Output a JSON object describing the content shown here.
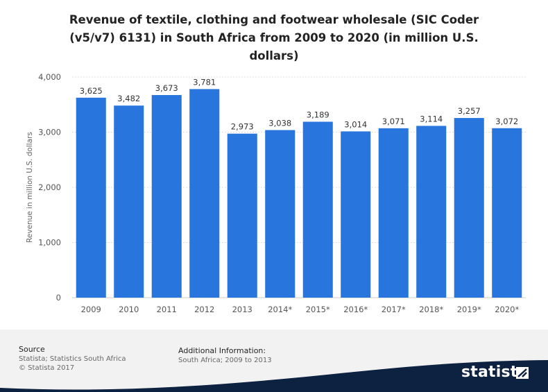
{
  "chart_data": {
    "type": "bar",
    "title": "Revenue of textile, clothing and footwear wholesale (SIC Coder (v5/v7) 6131) in South Africa from 2009 to 2020 (in million U.S. dollars)",
    "title_lines": [
      "Revenue of textile, clothing and footwear wholesale (SIC Coder",
      "(v5/v7) 6131) in South Africa from 2009 to 2020 (in million U.S.",
      "dollars)"
    ],
    "categories": [
      "2009",
      "2010",
      "2011",
      "2012",
      "2013",
      "2014*",
      "2015*",
      "2016*",
      "2017*",
      "2018*",
      "2019*",
      "2020*"
    ],
    "values": [
      3625,
      3482,
      3673,
      3781,
      2973,
      3038,
      3189,
      3014,
      3071,
      3114,
      3257,
      3072
    ],
    "value_labels": [
      "3,625",
      "3,482",
      "3,673",
      "3,781",
      "2,973",
      "3,038",
      "3,189",
      "3,014",
      "3,071",
      "3,114",
      "3,257",
      "3,072"
    ],
    "xlabel": "",
    "ylabel": "Revenue in million U.S. dollars",
    "ylim": [
      0,
      4000
    ],
    "yticks": [
      0,
      1000,
      2000,
      3000,
      4000
    ],
    "ytick_labels": [
      "0",
      "1,000",
      "2,000",
      "3,000",
      "4,000"
    ],
    "grid": true,
    "bar_color": "#2876dd"
  },
  "footer": {
    "source_title": "Source",
    "source_lines": [
      "Statista; Statistics South Africa",
      "© Statista 2017"
    ],
    "additional_title": "Additional Information:",
    "additional_text": "South Africa; 2009 to 2013",
    "logo_text": "statista"
  }
}
